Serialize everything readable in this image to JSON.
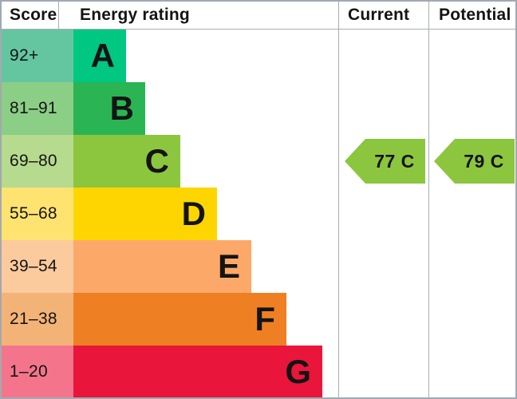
{
  "header": {
    "score": "Score",
    "energy_rating": "Energy rating",
    "current": "Current",
    "potential": "Potential"
  },
  "bands": [
    {
      "letter": "A",
      "range": "92+",
      "score_bg": "#64c6a1",
      "bar_color": "#00c781"
    },
    {
      "letter": "B",
      "range": "81–91",
      "score_bg": "#8bce85",
      "bar_color": "#2bb454"
    },
    {
      "letter": "C",
      "range": "69–80",
      "score_bg": "#b6da8e",
      "bar_color": "#8cc63f"
    },
    {
      "letter": "D",
      "range": "55–68",
      "score_bg": "#ffe371",
      "bar_color": "#ffd500"
    },
    {
      "letter": "E",
      "range": "39–54",
      "score_bg": "#fbca9d",
      "bar_color": "#fca869"
    },
    {
      "letter": "F",
      "range": "21–38",
      "score_bg": "#f4b376",
      "bar_color": "#ee8023"
    },
    {
      "letter": "G",
      "range": "1–20",
      "score_bg": "#f4758b",
      "bar_color": "#e9153b"
    }
  ],
  "current": {
    "label": "77 C",
    "score": 77,
    "rating": "C",
    "arrow_color": "#8cc63f"
  },
  "potential": {
    "label": "79 C",
    "score": 79,
    "rating": "C",
    "arrow_color": "#8cc63f"
  },
  "colors": {
    "grid_line": "#a9aeb3",
    "outer_border": "#a2a9b0",
    "text": "#141414"
  },
  "chart_data": {
    "type": "bar",
    "title": "Energy rating",
    "categories": [
      "A",
      "B",
      "C",
      "D",
      "E",
      "F",
      "G"
    ],
    "score_ranges": [
      "92+",
      "81–91",
      "69–80",
      "55–68",
      "39–54",
      "21–38",
      "1–20"
    ],
    "band_colors": [
      "#00c781",
      "#2bb454",
      "#8cc63f",
      "#ffd500",
      "#fca869",
      "#ee8023",
      "#e9153b"
    ],
    "current": {
      "score": 77,
      "rating": "C"
    },
    "potential": {
      "score": 79,
      "rating": "C"
    },
    "legend_position": "none",
    "grid": false
  }
}
